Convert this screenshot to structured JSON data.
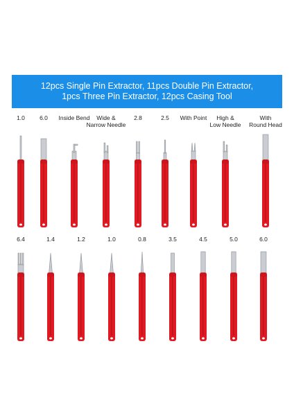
{
  "banner": {
    "line1": "12pcs Single Pin Extractor, 11pcs Double Pin Extractor,",
    "line2": "1pcs Three Pin Extractor, 12pcs Casing Tool",
    "bg_color": "#1b8fe8",
    "text_color": "#ffffff"
  },
  "row1": [
    {
      "label_1": "1.0",
      "label_2": "",
      "tip": "needle-thin"
    },
    {
      "label_1": "6.0",
      "label_2": "",
      "tip": "tube-wide"
    },
    {
      "label_1": "Inside Bend",
      "label_2": "",
      "tip": "bent-fork"
    },
    {
      "label_1": "Wide &",
      "label_2": "Narrow Needle",
      "tip": "double-wide"
    },
    {
      "label_1": "2.8",
      "label_2": "",
      "tip": "double-narrow"
    },
    {
      "label_1": "2.5",
      "label_2": "",
      "tip": "blade-thin"
    },
    {
      "label_1": "With Point",
      "label_2": "",
      "tip": "pointed-fork"
    },
    {
      "label_1": "High &",
      "label_2": "Low Needle",
      "tip": "double-step"
    },
    {
      "label_1": "With",
      "label_2": "Round Head",
      "tip": "tube-round"
    }
  ],
  "row2": [
    {
      "label_1": "6.4",
      "label_2": "",
      "tip": "triple-fork"
    },
    {
      "label_1": "1.4",
      "label_2": "",
      "tip": "cone-needle"
    },
    {
      "label_1": "1.2",
      "label_2": "",
      "tip": "cone-needle"
    },
    {
      "label_1": "1.0",
      "label_2": "",
      "tip": "cone-needle"
    },
    {
      "label_1": "0.8",
      "label_2": "",
      "tip": "fine-needle"
    },
    {
      "label_1": "3.5",
      "label_2": "",
      "tip": "tube-narrow"
    },
    {
      "label_1": "4.5",
      "label_2": "",
      "tip": "tube-mid"
    },
    {
      "label_1": "5.0",
      "label_2": "",
      "tip": "tube-mid"
    },
    {
      "label_1": "6.0",
      "label_2": "",
      "tip": "tube-wide"
    }
  ],
  "colors": {
    "handle": "#e01a22",
    "handle_dark": "#a80f16",
    "metal": "#c9ccd0",
    "metal_dark": "#8a8f95"
  }
}
